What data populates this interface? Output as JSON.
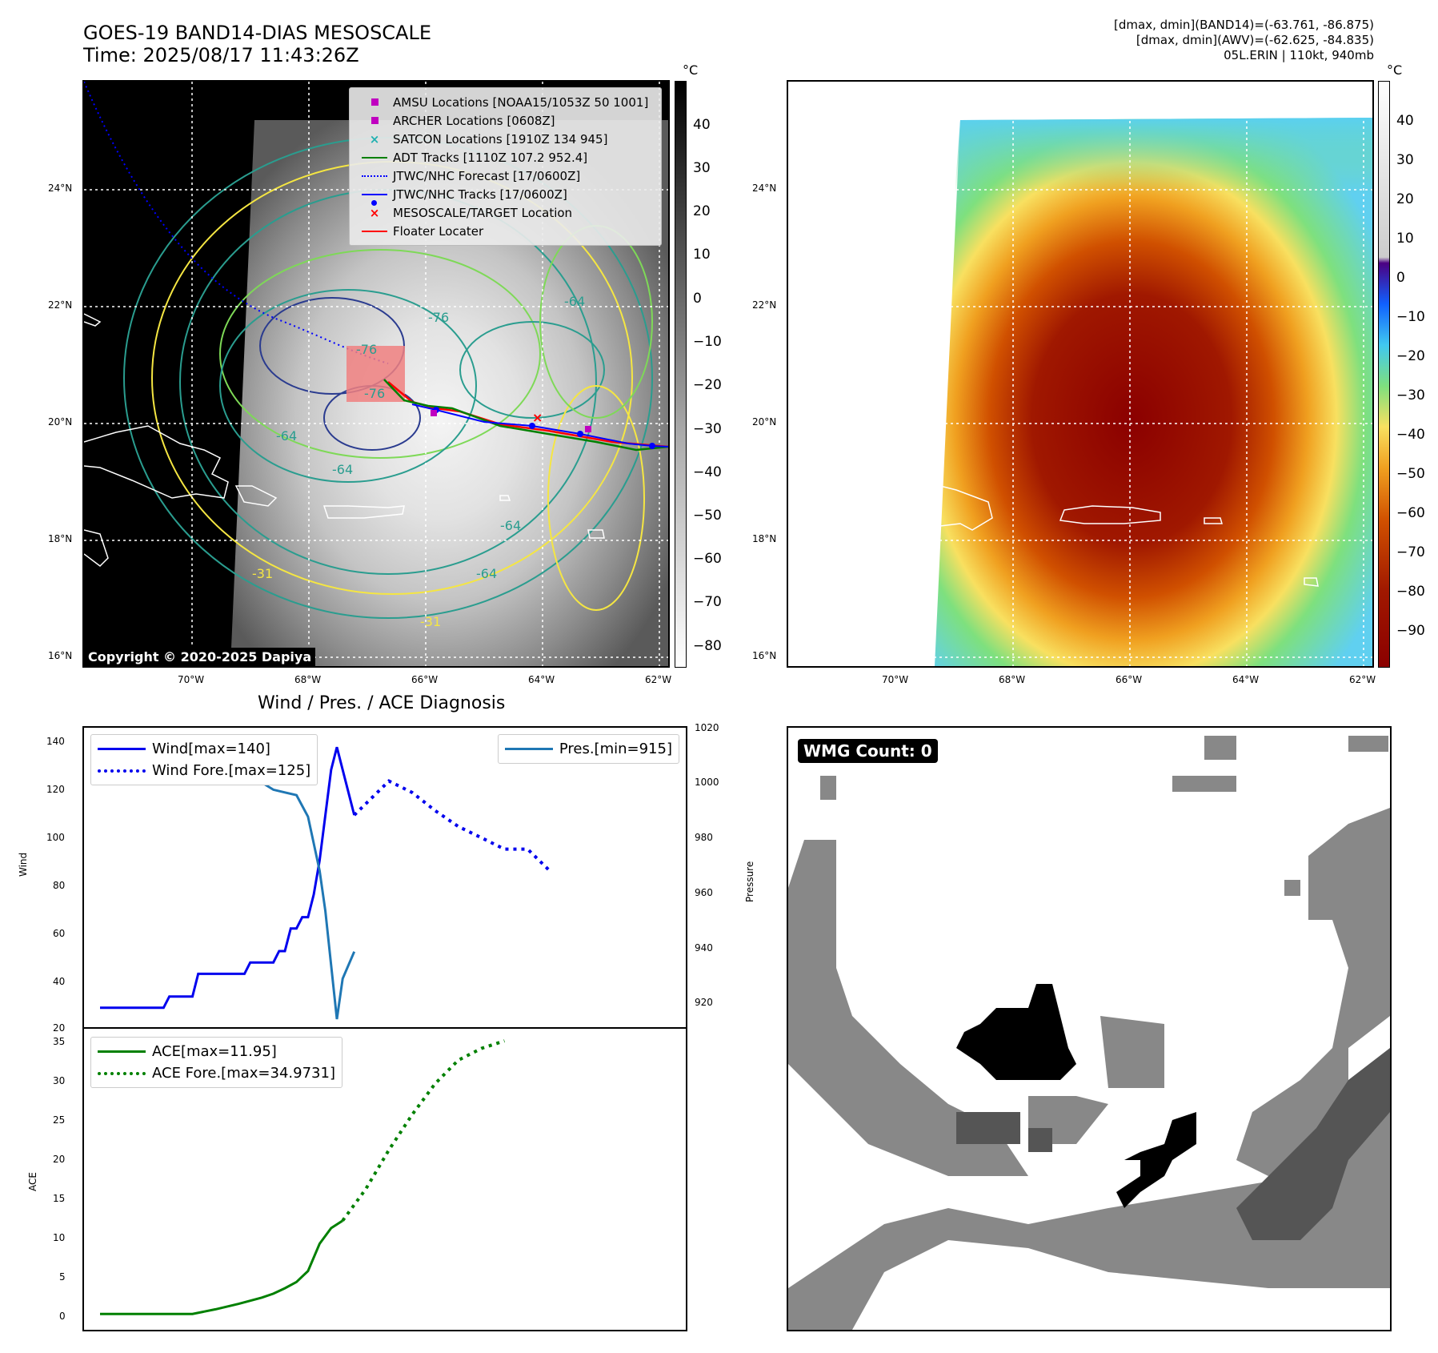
{
  "header": {
    "title_line1": "GOES-19 BAND14-DIAS MESOSCALE",
    "title_line2": "Time: 2025/08/17 11:43:26Z",
    "stats_line1": "[dmax, dmin](BAND14)=(-63.761, -86.875)",
    "stats_line2": "[dmax, dmin](AWV)=(-62.625, -84.835)",
    "stats_line3": "05L.ERIN | 110kt, 940mb"
  },
  "map": {
    "lat_labels": [
      "24°N",
      "22°N",
      "20°N",
      "18°N",
      "16°N"
    ],
    "lon_labels": [
      "70°W",
      "68°W",
      "66°W",
      "64°W",
      "62°W"
    ],
    "copyright": "Copyright © 2020-2025 Dapiya",
    "contour_labels": [
      "-76",
      "-76",
      "-64",
      "-64",
      "-76",
      "-64",
      "-64",
      "-31",
      "-31",
      "-64"
    ],
    "legend": [
      {
        "label": "AMSU Locations [NOAA15/1053Z 50 1001]",
        "color": "#c000c0",
        "symbol": "square"
      },
      {
        "label": "ARCHER Locations [0608Z]",
        "color": "#c000c0",
        "symbol": "square"
      },
      {
        "label": "SATCON Locations [1910Z 134 945]",
        "color": "#20b0b0",
        "symbol": "x"
      },
      {
        "label": "ADT Tracks [1110Z 107.2 952.4]",
        "color": "#008000",
        "symbol": "line"
      },
      {
        "label": "JTWC/NHC Forecast [17/0600Z]",
        "color": "#0000ff",
        "symbol": "dotted"
      },
      {
        "label": "JTWC/NHC Tracks [17/0600Z]",
        "color": "#0000ff",
        "symbol": "line-dot"
      },
      {
        "label": "MESOSCALE/TARGET Location",
        "color": "#ff0000",
        "symbol": "x"
      },
      {
        "label": "Floater Locater",
        "color": "#ff0000",
        "symbol": "line"
      }
    ]
  },
  "colorbar_left": {
    "unit": "°C",
    "ticks": [
      "40",
      "30",
      "20",
      "10",
      "0",
      "−10",
      "−20",
      "−30",
      "−40",
      "−50",
      "−60",
      "−70",
      "−80"
    ]
  },
  "colorbar_right": {
    "unit": "°C",
    "ticks": [
      "40",
      "30",
      "20",
      "10",
      "0",
      "−10",
      "−20",
      "−30",
      "−40",
      "−50",
      "−60",
      "−70",
      "−80",
      "−90"
    ]
  },
  "diagnosis": {
    "title": "Wind / Pres. / ACE Diagnosis",
    "wind_ylabel": "Wind",
    "pres_ylabel": "Pressure",
    "ace_ylabel": "ACE",
    "wind_ticks": [
      "140",
      "120",
      "100",
      "80",
      "60",
      "40",
      "20"
    ],
    "pres_ticks": [
      "1020",
      "1000",
      "980",
      "960",
      "940",
      "920"
    ],
    "ace_ticks": [
      "35",
      "30",
      "25",
      "20",
      "15",
      "10",
      "5",
      "0"
    ],
    "legend_wind": "Wind[max=140]",
    "legend_wind_fore": "Wind Fore.[max=125]",
    "legend_pres": "Pres.[min=915]",
    "legend_ace": "ACE[max=11.95]",
    "legend_ace_fore": "ACE Fore.[max=34.9731]"
  },
  "wmg": {
    "label": "WMG Count: 0"
  },
  "colors": {
    "wind": "#0000ee",
    "pressure": "#1f77b4",
    "ace": "#008000"
  },
  "chart_data": [
    {
      "type": "line",
      "name": "wind",
      "x": [
        0,
        1,
        2,
        3,
        4,
        5,
        6,
        7,
        8,
        9,
        10,
        11,
        12,
        13,
        14,
        15,
        16,
        17,
        18,
        19,
        20,
        21,
        22,
        23,
        24,
        25,
        26,
        27,
        28,
        29,
        30,
        31,
        32,
        33,
        34,
        35,
        36,
        37,
        38,
        39,
        40,
        41,
        42,
        43,
        44,
        45,
        46,
        47,
        48,
        49,
        50,
        51,
        52,
        53,
        54,
        55,
        56,
        57,
        58,
        59,
        60,
        61,
        62,
        63,
        64,
        65,
        66,
        67,
        68,
        69,
        70,
        71,
        72,
        73,
        74,
        75,
        76,
        77,
        78,
        79,
        80,
        81,
        82,
        83,
        84,
        85,
        86,
        87,
        88,
        89,
        90,
        91,
        92,
        93,
        94,
        95,
        96,
        97,
        98,
        99,
        100
      ],
      "series": [
        {
          "name": "Wind[max=140]",
          "values": [
            [
              0,
              25
            ],
            [
              11,
              25
            ],
            [
              12,
              30
            ],
            [
              16,
              30
            ],
            [
              17,
              40
            ],
            [
              25,
              40
            ],
            [
              26,
              45
            ],
            [
              30,
              45
            ],
            [
              31,
              50
            ],
            [
              32,
              50
            ],
            [
              33,
              60
            ],
            [
              34,
              60
            ],
            [
              35,
              65
            ],
            [
              36,
              65
            ],
            [
              37,
              75
            ],
            [
              38,
              90
            ],
            [
              40,
              130
            ],
            [
              41,
              140
            ],
            [
              42,
              130
            ],
            [
              44,
              110
            ]
          ]
        },
        {
          "name": "Wind Fore.[max=125]",
          "values": [
            [
              44,
              110
            ],
            [
              46,
              115
            ],
            [
              50,
              125
            ],
            [
              54,
              120
            ],
            [
              58,
              112
            ],
            [
              62,
              105
            ],
            [
              66,
              100
            ],
            [
              70,
              95
            ],
            [
              74,
              95
            ],
            [
              78,
              85
            ]
          ]
        }
      ],
      "ylim": [
        20,
        145
      ]
    },
    {
      "type": "line",
      "name": "pressure",
      "series": [
        {
          "name": "Pres.[min=915]",
          "values": [
            [
              0,
              1015
            ],
            [
              2,
              1015
            ],
            [
              3,
              1010
            ],
            [
              5,
              1009
            ],
            [
              8,
              1009
            ],
            [
              12,
              1009
            ],
            [
              15,
              1010
            ],
            [
              20,
              1008
            ],
            [
              25,
              1006
            ],
            [
              27,
              1004
            ],
            [
              30,
              1000
            ],
            [
              32,
              999
            ],
            [
              34,
              998
            ],
            [
              36,
              990
            ],
            [
              38,
              970
            ],
            [
              39,
              955
            ],
            [
              40,
              935
            ],
            [
              41,
              915
            ],
            [
              42,
              930
            ],
            [
              44,
              940
            ]
          ]
        }
      ],
      "ylim": [
        915,
        1020
      ]
    },
    {
      "type": "line",
      "name": "ace",
      "series": [
        {
          "name": "ACE[max=11.95]",
          "values": [
            [
              0,
              0
            ],
            [
              4,
              0
            ],
            [
              8,
              0
            ],
            [
              12,
              0
            ],
            [
              16,
              0
            ],
            [
              20,
              0.6
            ],
            [
              24,
              1.3
            ],
            [
              28,
              2.1
            ],
            [
              30,
              2.6
            ],
            [
              32,
              3.3
            ],
            [
              34,
              4.1
            ],
            [
              36,
              5.5
            ],
            [
              38,
              9
            ],
            [
              40,
              11.0
            ],
            [
              42,
              11.95
            ]
          ]
        },
        {
          "name": "ACE Fore.[max=34.9731]",
          "values": [
            [
              42,
              11.95
            ],
            [
              46,
              16
            ],
            [
              50,
              21
            ],
            [
              54,
              25.5
            ],
            [
              58,
              29.5
            ],
            [
              62,
              32.5
            ],
            [
              66,
              34.0
            ],
            [
              70,
              34.9731
            ]
          ]
        }
      ],
      "ylim": [
        -1,
        35.5
      ]
    }
  ]
}
